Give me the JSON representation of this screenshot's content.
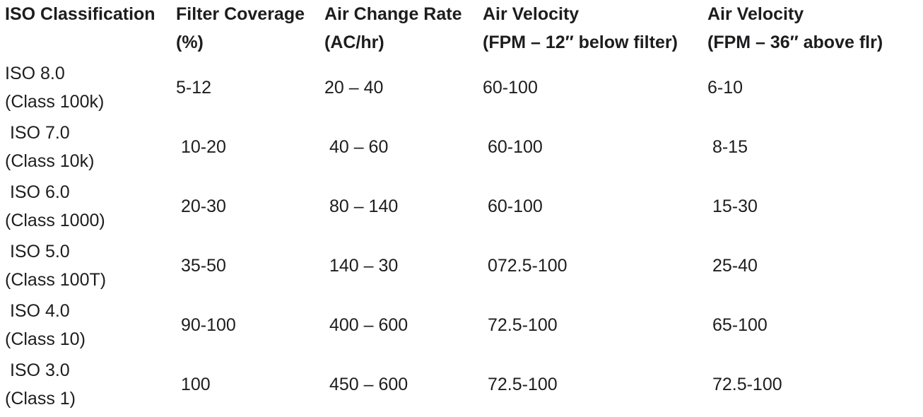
{
  "table": {
    "headers": [
      {
        "line1": "ISO Classification",
        "line2": ""
      },
      {
        "line1": "Filter Coverage",
        "line2": "(%)"
      },
      {
        "line1": "Air Change Rate",
        "line2": "(AC/hr)"
      },
      {
        "line1": "Air Velocity",
        "line2": "(FPM – 12″ below filter)"
      },
      {
        "line1": "Air Velocity",
        "line2": "(FPM – 36″ above flr)"
      }
    ],
    "rows": [
      {
        "iso": "ISO 8.0",
        "class": "(Class 100k)",
        "coverage": "5-12",
        "ach": "20 – 40",
        "vel_filter": "60-100",
        "vel_floor": "6-10"
      },
      {
        "iso": " ISO 7.0",
        "class": "(Class 10k)",
        "coverage": " 10-20",
        "ach": " 40 – 60",
        "vel_filter": " 60-100",
        "vel_floor": " 8-15"
      },
      {
        "iso": " ISO 6.0",
        "class": "(Class 1000)",
        "coverage": " 20-30",
        "ach": " 80 – 140",
        "vel_filter": " 60-100",
        "vel_floor": " 15-30"
      },
      {
        "iso": " ISO 5.0",
        "class": "(Class 100T)",
        "coverage": " 35-50",
        "ach": " 140 – 30",
        "vel_filter": " 072.5-100",
        "vel_floor": " 25-40"
      },
      {
        "iso": " ISO 4.0",
        "class": "(Class 10)",
        "coverage": " 90-100",
        "ach": " 400 – 600",
        "vel_filter": " 72.5-100",
        "vel_floor": " 65-100"
      },
      {
        "iso": " ISO 3.0",
        "class": "(Class 1)",
        "coverage": " 100",
        "ach": " 450 – 600",
        "vel_filter": " 72.5-100",
        "vel_floor": " 72.5-100"
      }
    ]
  }
}
